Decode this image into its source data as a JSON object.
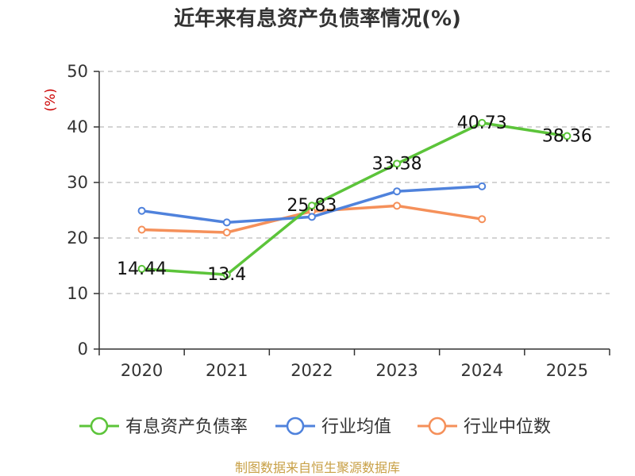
{
  "chart_data": {
    "type": "line",
    "title": "近年来有息资产负债率情况(%)",
    "ylabel": "(%)",
    "xlabel": "",
    "ylim": [
      0,
      50
    ],
    "yticks": [
      0,
      10,
      20,
      30,
      40,
      50
    ],
    "categories": [
      "2020",
      "2021",
      "2022",
      "2023",
      "2024",
      "2025"
    ],
    "grid": true,
    "legend_position": "bottom",
    "series": [
      {
        "name": "有息资产负债率",
        "color": "#5cc43a",
        "values": [
          14.44,
          13.4,
          25.83,
          33.38,
          40.73,
          38.36
        ],
        "labels": [
          "14.44",
          "13.4",
          "25.83",
          "33.38",
          "40.73",
          "38.36"
        ]
      },
      {
        "name": "行业均值",
        "color": "#4f82dc",
        "values": [
          24.9,
          22.8,
          23.8,
          28.4,
          29.3,
          null
        ]
      },
      {
        "name": "行业中位数",
        "color": "#f5905a",
        "values": [
          21.5,
          21.0,
          24.8,
          25.8,
          23.4,
          null
        ]
      }
    ]
  },
  "source": {
    "text": "制图数据来自恒生聚源数据库",
    "color": "#c8a046"
  },
  "colors": {
    "ylabel": "#cc0000",
    "grid": "#bbbbbb",
    "axis": "#333333"
  }
}
